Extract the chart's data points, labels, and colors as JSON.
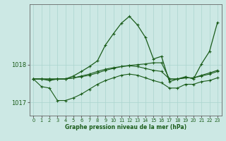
{
  "title": "",
  "xlabel": "Graphe pression niveau de la mer (hPa)",
  "background_color": "#cce8e4",
  "grid_color": "#aad4ce",
  "line_color": "#1a5c1a",
  "xlim": [
    -0.5,
    23.5
  ],
  "ylim": [
    1016.65,
    1019.6
  ],
  "yticks": [
    1017,
    1018
  ],
  "xticks": [
    0,
    1,
    2,
    3,
    4,
    5,
    6,
    7,
    8,
    9,
    10,
    11,
    12,
    13,
    14,
    15,
    16,
    17,
    18,
    19,
    20,
    21,
    22,
    23
  ],
  "series": {
    "line1": [
      1017.62,
      1017.62,
      1017.58,
      1017.62,
      1017.62,
      1017.7,
      1017.82,
      1017.95,
      1018.1,
      1018.52,
      1018.82,
      1019.1,
      1019.28,
      1019.05,
      1018.72,
      1018.15,
      1018.22,
      1017.55,
      1017.62,
      1017.68,
      1017.62,
      1018.02,
      1018.35,
      1019.12
    ],
    "line2": [
      1017.62,
      1017.62,
      1017.62,
      1017.62,
      1017.62,
      1017.65,
      1017.68,
      1017.72,
      1017.78,
      1017.85,
      1017.9,
      1017.95,
      1017.98,
      1018.0,
      1018.02,
      1018.05,
      1018.05,
      1017.62,
      1017.62,
      1017.65,
      1017.65,
      1017.72,
      1017.78,
      1017.85
    ],
    "line3": [
      1017.62,
      1017.42,
      1017.38,
      1017.05,
      1017.05,
      1017.12,
      1017.22,
      1017.35,
      1017.48,
      1017.58,
      1017.65,
      1017.72,
      1017.75,
      1017.72,
      1017.65,
      1017.58,
      1017.52,
      1017.38,
      1017.38,
      1017.48,
      1017.48,
      1017.55,
      1017.58,
      1017.65
    ],
    "line4": [
      1017.62,
      1017.62,
      1017.62,
      1017.62,
      1017.62,
      1017.65,
      1017.7,
      1017.75,
      1017.82,
      1017.88,
      1017.92,
      1017.95,
      1017.97,
      1017.95,
      1017.9,
      1017.85,
      1017.82,
      1017.62,
      1017.62,
      1017.65,
      1017.65,
      1017.7,
      1017.75,
      1017.82
    ]
  }
}
